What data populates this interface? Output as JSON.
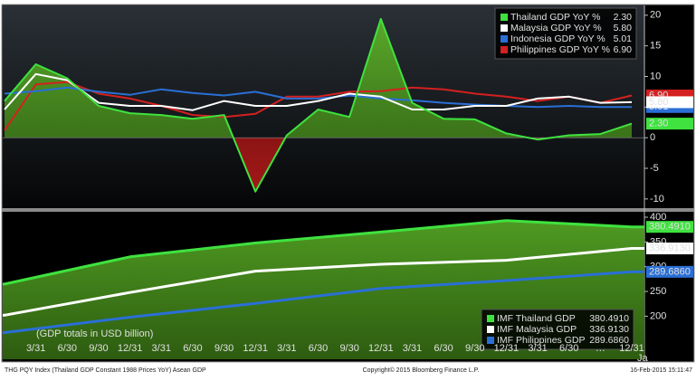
{
  "chart_data": [
    {
      "type": "line",
      "categories": [
        null,
        "3/31",
        "6/30",
        "9/30",
        "12/31",
        "3/31",
        "6/30",
        "9/30",
        "12/31",
        "3/31",
        "6/30",
        "9/30",
        "12/31",
        "3/31",
        "6/30",
        "9/30",
        "12/31",
        "3/31",
        "6/30",
        "…",
        "12/31"
      ],
      "series": [
        {
          "name": "Thailand GDP YoY %",
          "color": "#3fe23f",
          "fill": true,
          "value_label": "2.30",
          "values": [
            6,
            12,
            9.7,
            5.2,
            4,
            3.7,
            3.1,
            3.7,
            -8.8,
            0.4,
            4.6,
            3.4,
            19.4,
            5.7,
            3.1,
            3,
            0.7,
            -0.3,
            0.4,
            0.6,
            2.3
          ]
        },
        {
          "name": "Malaysia GDP YoY %",
          "color": "#ffffff",
          "value_label": "5.80",
          "values": [
            4.6,
            10.4,
            9.4,
            5.7,
            5.2,
            5.2,
            4.5,
            6,
            5.2,
            5.2,
            6,
            7.2,
            6.7,
            4.6,
            4.6,
            5.2,
            5.2,
            6.4,
            6.7,
            5.7,
            5.8
          ]
        },
        {
          "name": "Indonesia GDP YoY %",
          "color": "#2a6fd6",
          "value_label": "5.01",
          "values": [
            7.2,
            7.6,
            8.2,
            7.5,
            7,
            7.9,
            7.3,
            6.9,
            7.5,
            6.4,
            6.4,
            6.9,
            6.4,
            6.1,
            5.7,
            5.4,
            5.2,
            5,
            5.2,
            5,
            5.01
          ]
        },
        {
          "name": "Philippines GDP YoY %",
          "color": "#d42020",
          "value_label": "6.90",
          "values": [
            1.2,
            8.7,
            9.1,
            7.2,
            6.4,
            5.2,
            3.7,
            3.4,
            3.9,
            6.7,
            6.7,
            7.5,
            7.6,
            8.2,
            7.9,
            7.2,
            6.7,
            6,
            6.7,
            5.7,
            6.9
          ]
        }
      ],
      "ylim": [
        -11.5,
        21.6
      ],
      "yticks": [
        20,
        15,
        10,
        5,
        0,
        -5,
        -10
      ],
      "grid": false,
      "legend": "upper right"
    },
    {
      "type": "area",
      "annotation": "(GDP totals in USD billion)",
      "axis_note": "Ja",
      "series": [
        {
          "name": "IMF Thailand GDP",
          "color": "#3fe23f",
          "fill": true,
          "value_label": "380.4910",
          "values": [
            265,
            320,
            348,
            370,
            393,
            380.491
          ]
        },
        {
          "name": "IMF Malaysia GDP",
          "color": "#ffffff",
          "value_label": "336.9130",
          "values": [
            202,
            248,
            291,
            305,
            313,
            336.913
          ]
        },
        {
          "name": "IMF Philippines GDP",
          "color": "#2a6fd6",
          "value_label": "289.6860",
          "values": [
            167,
            198,
            226,
            256,
            272,
            289.686
          ]
        }
      ],
      "ylim": [
        113,
        411
      ],
      "yticks": [
        400,
        350,
        300,
        250,
        200
      ],
      "grid": false,
      "legend": "lower right"
    }
  ],
  "footer": {
    "left": "THG PQY Index (Thailand GDP Constant 1988 Prices YoY) Asean GDP",
    "center": "Copyright© 2015 Bloomberg Finance L.P.",
    "right": "16-Feb-2015 15:11:47"
  }
}
